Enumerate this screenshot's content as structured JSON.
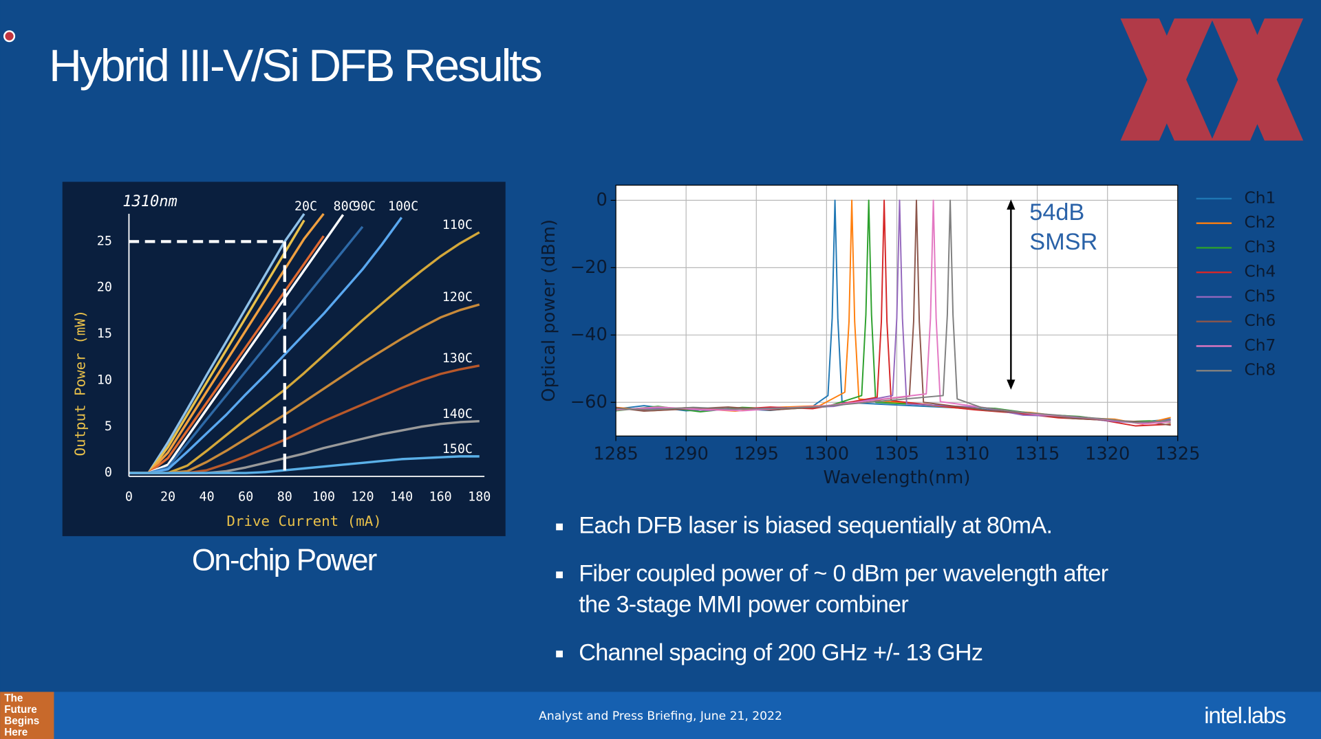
{
  "title": "Hybrid III-V/Si DFB Results",
  "caption": "On-chip Power",
  "bullets": [
    [
      "Each DFB laser is biased sequentially at 80mA."
    ],
    [
      "Fiber coupled power of ~ 0 dBm per wavelength after",
      "the 3-stage MMI power combiner"
    ],
    [
      "Channel spacing of 200 GHz +/- 13 GHz"
    ]
  ],
  "footer": {
    "badge": [
      "The",
      "Future",
      "Begins",
      "Here"
    ],
    "briefing": "Analyst and Press Briefing,  June 21, 2022",
    "logo": "intel.labs"
  },
  "chart_data": [
    {
      "type": "line",
      "title": "1310nm",
      "x_label": "Drive Current (mA)",
      "y_label": "Output Power (mW)",
      "xlim": [
        0,
        180
      ],
      "ylim": [
        0,
        28
      ],
      "xticks": [
        0,
        20,
        40,
        60,
        80,
        100,
        120,
        140,
        160,
        180
      ],
      "yticks": [
        0,
        5,
        10,
        15,
        20,
        25
      ],
      "grid": false,
      "legend": "line-end",
      "guide": {
        "x": 80,
        "y": 25
      },
      "x": [
        0,
        10,
        20,
        30,
        40,
        50,
        60,
        70,
        80,
        90,
        100,
        110,
        120,
        130,
        140,
        150,
        160,
        170,
        180
      ],
      "series": [
        {
          "name": "20C",
          "color": "#8fc1e8",
          "values": [
            0,
            0,
            3.3,
            6.9,
            10.6,
            14.2,
            17.8,
            21.4,
            25,
            28,
            null,
            null,
            null,
            null,
            null,
            null,
            null,
            null,
            null
          ]
        },
        {
          "color": "#e8c04a",
          "values": [
            0,
            0,
            2.8,
            6.3,
            9.8,
            13.3,
            16.8,
            20.3,
            23.8,
            27.3,
            null,
            null,
            null,
            null,
            null,
            null,
            null,
            null,
            null
          ]
        },
        {
          "color": "#f0a040",
          "values": [
            0,
            0,
            2.2,
            5.5,
            8.8,
            12.1,
            15.4,
            18.7,
            22,
            25.3,
            28,
            null,
            null,
            null,
            null,
            null,
            null,
            null,
            null
          ]
        },
        {
          "color": "#e06a30",
          "values": [
            0,
            0,
            1.6,
            4.6,
            7.6,
            10.6,
            13.6,
            16.6,
            19.6,
            22.6,
            25.6,
            null,
            null,
            null,
            null,
            null,
            null,
            null,
            null
          ]
        },
        {
          "name": "80C",
          "color": "#ffffff",
          "values": [
            0,
            0,
            0.9,
            3.9,
            6.9,
            9.9,
            12.9,
            15.9,
            18.9,
            21.9,
            24.9,
            27.9,
            null,
            null,
            null,
            null,
            null,
            null,
            null
          ]
        },
        {
          "name": "90C",
          "color": "#2e6aa8",
          "values": [
            0,
            0,
            0.6,
            3.2,
            5.8,
            8.4,
            11,
            13.6,
            16.2,
            18.8,
            21.4,
            24,
            26.6,
            null,
            null,
            null,
            null,
            null,
            null
          ]
        },
        {
          "name": "100C",
          "color": "#5aa8f0",
          "values": [
            0,
            0,
            0.4,
            2.3,
            4.3,
            6.3,
            8.5,
            10.6,
            12.8,
            15,
            17.2,
            19.6,
            22,
            24.7,
            27.6,
            null,
            null,
            null,
            null
          ]
        },
        {
          "name": "110C",
          "color": "#d4a83a",
          "values": [
            0,
            0,
            0,
            0.8,
            2.4,
            4.1,
            5.8,
            7.4,
            9,
            10.8,
            12.7,
            14.6,
            16.5,
            18.3,
            20.1,
            21.8,
            23.4,
            24.8,
            26
          ]
        },
        {
          "name": "120C",
          "color": "#c88a3a",
          "values": [
            0,
            0,
            0,
            0.2,
            1.2,
            2.4,
            3.7,
            5,
            6.3,
            7.7,
            9.1,
            10.5,
            11.9,
            13.2,
            14.5,
            15.7,
            16.8,
            17.6,
            18.2
          ]
        },
        {
          "name": "130C",
          "color": "#b8582a",
          "values": [
            0,
            0,
            0,
            0,
            0.3,
            1,
            1.8,
            2.7,
            3.6,
            4.6,
            5.6,
            6.5,
            7.4,
            8.3,
            9.2,
            10,
            10.7,
            11.2,
            11.6
          ]
        },
        {
          "name": "140C",
          "color": "#9a9a9a",
          "values": [
            0,
            0,
            0,
            0,
            0,
            0.2,
            0.6,
            1.1,
            1.6,
            2.1,
            2.7,
            3.2,
            3.7,
            4.2,
            4.6,
            5,
            5.3,
            5.5,
            5.6
          ]
        },
        {
          "name": "150C",
          "color": "#5ab0e8",
          "values": [
            0,
            0,
            0,
            0,
            0,
            0,
            0,
            0.1,
            0.3,
            0.5,
            0.7,
            0.9,
            1.1,
            1.3,
            1.5,
            1.6,
            1.7,
            1.8,
            1.8
          ]
        }
      ]
    },
    {
      "type": "line",
      "x_label": "Wavelength(nm)",
      "y_label": "Optical power (dBm)",
      "xlim": [
        1285,
        1325
      ],
      "ylim": [
        -70,
        4.5
      ],
      "xticks": [
        1285,
        1290,
        1295,
        1300,
        1305,
        1310,
        1315,
        1320,
        1325
      ],
      "yticks": [
        {
          "value": -60,
          "label": "−60"
        },
        {
          "value": -40,
          "label": "−40"
        },
        {
          "value": -20,
          "label": "−20"
        },
        0
      ],
      "grid": true,
      "legend": "right",
      "annotation": [
        "54dB",
        "SMSR"
      ],
      "series": [
        {
          "name": "Ch1",
          "color": "#1f77b4",
          "x": [
            1285,
            1287,
            1290,
            1293,
            1296,
            1299,
            1300.1,
            1300.4,
            1300.6,
            1300.8,
            1301.1,
            1311,
            1314,
            1317,
            1320,
            1322,
            1324.5
          ],
          "values": [
            -62,
            -61,
            -62.5,
            -61.8,
            -62.4,
            -61.2,
            -58,
            -35,
            0,
            -35,
            -60,
            -62,
            -63.5,
            -64,
            -65.5,
            -66,
            -65
          ]
        },
        {
          "name": "Ch2",
          "color": "#ff7f0e",
          "x": [
            1285,
            1287.5,
            1290.5,
            1293.5,
            1296.5,
            1299.5,
            1301.3,
            1301.6,
            1301.8,
            1302,
            1302.3,
            1311.5,
            1314.5,
            1317.5,
            1320.5,
            1322.5,
            1324.5
          ],
          "values": [
            -61.5,
            -62.5,
            -61.8,
            -62.6,
            -61.5,
            -61,
            -57,
            -36,
            0,
            -36,
            -59,
            -62.5,
            -63,
            -64.5,
            -65,
            -66.5,
            -64.5
          ]
        },
        {
          "name": "Ch3",
          "color": "#2ca02c",
          "x": [
            1285,
            1288,
            1291,
            1294,
            1297,
            1300,
            1302.5,
            1302.8,
            1303,
            1303.2,
            1303.5,
            1312,
            1315,
            1318,
            1321,
            1323,
            1324.5
          ],
          "values": [
            -62.5,
            -61.2,
            -62.8,
            -61.5,
            -62,
            -61.3,
            -58,
            -34,
            0,
            -34,
            -60,
            -61.8,
            -63.5,
            -64.2,
            -65.8,
            -65.5,
            -66
          ]
        },
        {
          "name": "Ch4",
          "color": "#d62728",
          "x": [
            1285,
            1287,
            1290,
            1293,
            1296,
            1299,
            1303.6,
            1303.9,
            1304.1,
            1304.3,
            1304.6,
            1310.5,
            1313.5,
            1316.5,
            1319.5,
            1322,
            1324.5
          ],
          "values": [
            -61.8,
            -62.3,
            -61.6,
            -62.2,
            -61.4,
            -61.9,
            -58.5,
            -36,
            0,
            -36,
            -59.5,
            -62.2,
            -63.2,
            -64.6,
            -65.2,
            -67,
            -66.5
          ]
        },
        {
          "name": "Ch5",
          "color": "#9467bd",
          "x": [
            1285,
            1288.5,
            1291.5,
            1294.5,
            1297.5,
            1300.5,
            1304.7,
            1305,
            1305.2,
            1305.4,
            1305.7,
            1311,
            1314,
            1317,
            1320,
            1322.5,
            1324.5
          ],
          "values": [
            -62.2,
            -61.7,
            -62.4,
            -61.9,
            -61.6,
            -61.2,
            -58,
            -35,
            0,
            -35,
            -60.5,
            -61.5,
            -63.8,
            -64.2,
            -65.5,
            -66.2,
            -65.2
          ]
        },
        {
          "name": "Ch6",
          "color": "#8c564b",
          "x": [
            1285,
            1287,
            1290,
            1293,
            1296,
            1299,
            1305.9,
            1306.2,
            1306.4,
            1306.6,
            1306.9,
            1311.5,
            1314.5,
            1317.5,
            1320.5,
            1323,
            1324.5
          ],
          "values": [
            -61.6,
            -62.6,
            -62,
            -61.4,
            -62.3,
            -61.5,
            -58.2,
            -36,
            0,
            -36,
            -60,
            -62.4,
            -63.3,
            -64.8,
            -65.4,
            -65.9,
            -66.8
          ]
        },
        {
          "name": "Ch7",
          "color": "#e377c2",
          "x": [
            1285,
            1288,
            1291,
            1294,
            1297,
            1300,
            1307.1,
            1307.4,
            1307.6,
            1307.8,
            1308.1,
            1312,
            1315,
            1318,
            1321,
            1322.5,
            1324.5
          ],
          "values": [
            -62.3,
            -61.4,
            -62.1,
            -62.5,
            -61.7,
            -61,
            -57.5,
            -35,
            0,
            -35,
            -59.8,
            -62,
            -63.6,
            -64.4,
            -65.6,
            -66.4,
            -65.8
          ]
        },
        {
          "name": "Ch8",
          "color": "#7f7f7f",
          "x": [
            1285,
            1287.5,
            1290.5,
            1293.5,
            1296.5,
            1299.5,
            1308.3,
            1308.6,
            1308.8,
            1309,
            1309.3,
            1311,
            1314,
            1317,
            1320,
            1322,
            1324.5
          ],
          "values": [
            -61.9,
            -62.2,
            -61.5,
            -62,
            -61.8,
            -61.3,
            -58,
            -34,
            0,
            -34,
            -59,
            -61.5,
            -63,
            -64,
            -65,
            -66,
            -65.4
          ]
        }
      ]
    }
  ]
}
